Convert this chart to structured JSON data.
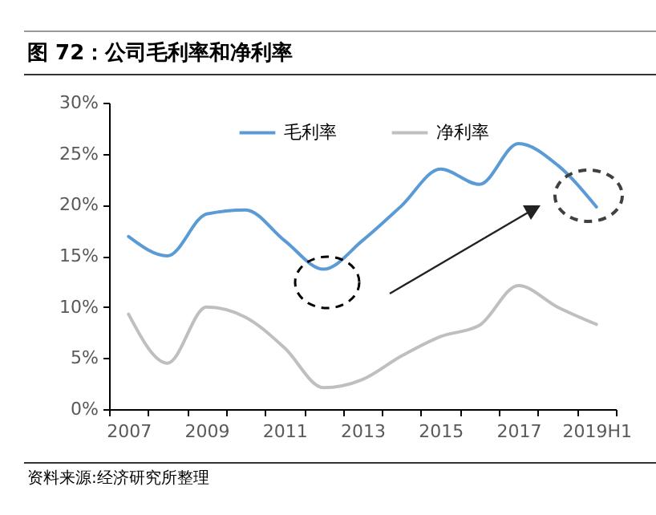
{
  "chart_data": {
    "type": "line",
    "title": "图 72：公司毛利率和净利率",
    "annotations": [
      "资料来源:经济研究所整理"
    ],
    "categories": [
      "2007",
      null,
      "2009",
      null,
      "2011",
      null,
      "2013",
      null,
      "2015",
      null,
      "2017",
      null,
      "2019H1"
    ],
    "series": [
      {
        "name": "毛利率",
        "color": "#5b9bd5",
        "values": [
          16.9,
          15.0,
          19.1,
          19.5,
          16.5,
          13.7,
          16.5,
          19.9,
          23.5,
          22.0,
          26.0,
          23.9,
          19.8
        ]
      },
      {
        "name": "净利率",
        "color": "#bfbfbf",
        "values": [
          9.3,
          4.5,
          10.0,
          9.0,
          6.0,
          2.1,
          2.9,
          5.2,
          7.1,
          8.2,
          12.1,
          10.0,
          8.3
        ]
      }
    ],
    "ylim": [
      0,
      30
    ],
    "yticks": [
      {
        "value": 0,
        "label": "0%"
      },
      {
        "value": 5,
        "label": "5%"
      },
      {
        "value": 10,
        "label": "10%"
      },
      {
        "value": 15,
        "label": "15%"
      },
      {
        "value": 20,
        "label": "20%"
      },
      {
        "value": 25,
        "label": "25%"
      },
      {
        "value": 30,
        "label": "30%"
      }
    ],
    "grid": false,
    "legend": "top",
    "line_style": "solid"
  }
}
